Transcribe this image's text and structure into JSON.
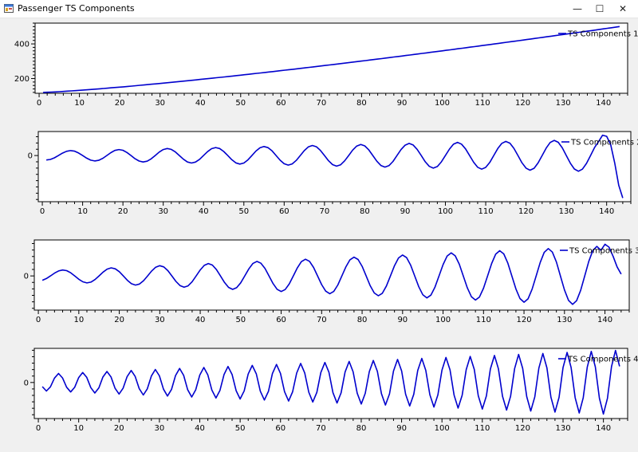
{
  "window": {
    "title": "Passenger TS Components",
    "minimize_glyph": "—",
    "maximize_glyph": "☐",
    "close_glyph": "✕",
    "icon": "app-icon"
  },
  "chart_data": [
    {
      "type": "line",
      "series": [
        {
          "name": "TS Components 1",
          "color": "#0000cd"
        }
      ],
      "x_ticks": [
        0,
        10,
        20,
        30,
        40,
        50,
        60,
        70,
        80,
        90,
        100,
        110,
        120,
        130,
        140
      ],
      "y_ticks": [
        200,
        400
      ],
      "xlim": [
        -1,
        146
      ],
      "ylim": [
        115,
        520
      ],
      "x_range": [
        1,
        144
      ],
      "component": "trend",
      "start": 120,
      "end": 500,
      "curvature": 1.25,
      "legend": "top-right",
      "grid": false
    },
    {
      "type": "line",
      "series": [
        {
          "name": "TS Components 2",
          "color": "#0000cd"
        }
      ],
      "x_ticks": [
        0,
        10,
        20,
        30,
        40,
        50,
        60,
        70,
        80,
        90,
        100,
        110,
        120,
        130,
        140
      ],
      "y_ticks": [
        0
      ],
      "xlim": [
        -1,
        146
      ],
      "ylim": [
        -125,
        65
      ],
      "x_range": [
        1,
        144
      ],
      "component": "seasonal",
      "period": 12,
      "peak_x": 7,
      "amp_start": 12,
      "amp_end": 45,
      "tail": [
        {
          "x": 139,
          "y": 55
        },
        {
          "x": 140,
          "y": 52
        },
        {
          "x": 141,
          "y": 30
        },
        {
          "x": 142,
          "y": -20
        },
        {
          "x": 143,
          "y": -80
        },
        {
          "x": 144,
          "y": -115
        }
      ],
      "legend": "top-right",
      "grid": false
    },
    {
      "type": "line",
      "series": [
        {
          "name": "TS Components 3",
          "color": "#0000cd"
        }
      ],
      "x_ticks": [
        0,
        10,
        20,
        30,
        40,
        50,
        60,
        70,
        80,
        90,
        100,
        110,
        120,
        130,
        140
      ],
      "y_ticks": [
        0
      ],
      "xlim": [
        -1,
        146
      ],
      "ylim": [
        -95,
        100
      ],
      "x_range": [
        1,
        144
      ],
      "component": "seasonal",
      "period": 12,
      "peak_x": 6,
      "amp_start": 14,
      "amp_end": 85,
      "y_at_start": 0,
      "tail": [
        {
          "x": 140,
          "y": 88
        },
        {
          "x": 141,
          "y": 80
        },
        {
          "x": 142,
          "y": 55
        },
        {
          "x": 143,
          "y": 25
        },
        {
          "x": 144,
          "y": 5
        }
      ],
      "legend": "top-right",
      "grid": false
    },
    {
      "type": "line",
      "series": [
        {
          "name": "TS Components 4",
          "color": "#0000cd"
        }
      ],
      "x_ticks": [
        0,
        10,
        20,
        30,
        40,
        50,
        60,
        70,
        80,
        90,
        100,
        110,
        120,
        130,
        140
      ],
      "y_ticks": [
        0
      ],
      "xlim": [
        -1,
        146
      ],
      "ylim": [
        -95,
        90
      ],
      "x_range": [
        1,
        144
      ],
      "component": "seasonal",
      "period": 6,
      "peak_x": 5,
      "amp_start": 22,
      "amp_end": 85,
      "legend": "top-right",
      "grid": false
    }
  ]
}
